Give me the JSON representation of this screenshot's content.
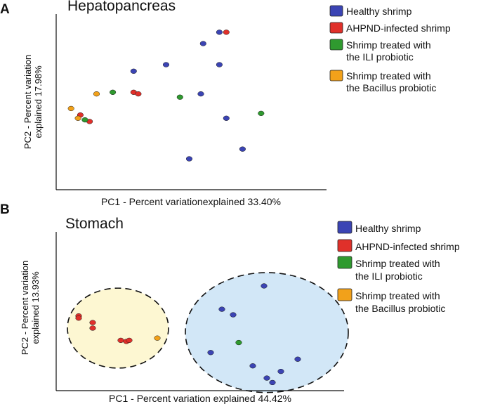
{
  "chart_data": [
    {
      "type": "scatter",
      "panel": "A",
      "title": "Hepatopancreas",
      "xlabel": "PC1 - Percent variationexplained 33.40%",
      "ylabel_line1": "PC2 - Percent variation",
      "ylabel_line2": "explained 17.98%",
      "xlim": [
        0,
        100
      ],
      "ylim": [
        0,
        100
      ],
      "legend": [
        {
          "label": "Healthy shrimp",
          "color": "#3b44b4"
        },
        {
          "label": "AHPND-infected shrimp",
          "color": "#e0302a"
        },
        {
          "label_line1": "Shrimp treated with",
          "label_line2": "the ILI probiotic",
          "color": "#2f9a2f"
        },
        {
          "label_line1": "Shrimp treated with",
          "label_line2": "the Bacillus probiotic",
          "color": "#f2a11a"
        }
      ],
      "series": [
        {
          "name": "Healthy shrimp",
          "color": "#3b44b4",
          "points": [
            [
              68,
              94
            ],
            [
              61,
              87
            ],
            [
              68,
              74
            ],
            [
              45,
              74
            ],
            [
              31,
              70
            ],
            [
              60,
              56
            ],
            [
              71,
              41
            ],
            [
              55,
              16
            ],
            [
              78,
              22
            ]
          ]
        },
        {
          "name": "AHPND-infected shrimp",
          "color": "#e0302a",
          "points": [
            [
              71,
              94
            ],
            [
              31,
              57
            ],
            [
              33,
              56
            ],
            [
              8,
              43
            ],
            [
              12,
              39
            ]
          ]
        },
        {
          "name": "Shrimp treated with the ILI probiotic",
          "color": "#2f9a2f",
          "points": [
            [
              22,
              57
            ],
            [
              51,
              54
            ],
            [
              86,
              44
            ],
            [
              10,
              40
            ]
          ]
        },
        {
          "name": "Shrimp treated with the Bacillus probiotic",
          "color": "#f2a11a",
          "points": [
            [
              15,
              56
            ],
            [
              4,
              47
            ],
            [
              7,
              41
            ]
          ]
        }
      ]
    },
    {
      "type": "scatter",
      "panel": "B",
      "title": "Stomach",
      "xlabel": "PC1 - Percent variation explained 44.42%",
      "ylabel_line1": "PC2 - Percent variation",
      "ylabel_line2": "explained 13.93%",
      "xlim": [
        0,
        100
      ],
      "ylim": [
        0,
        100
      ],
      "legend": [
        {
          "label": "Healthy shrimp",
          "color": "#3b44b4"
        },
        {
          "label": "AHPND-infected shrimp",
          "color": "#e0302a"
        },
        {
          "label_line1": "Shrimp treated with",
          "label_line2": "the ILI probiotic",
          "color": "#2f9a2f"
        },
        {
          "label_line1": "Shrimp treated with",
          "label_line2": "the Bacillus probiotic",
          "color": "#f2a11a"
        }
      ],
      "clusters": [
        {
          "name": "cluster-1",
          "fill": "#fdf7d2",
          "center": [
            20,
            50
          ],
          "radius": [
            18,
            36
          ]
        },
        {
          "name": "cluster-2",
          "fill": "#d2e7f7",
          "center": [
            73,
            46
          ],
          "radius": [
            29,
            54
          ]
        }
      ],
      "series": [
        {
          "name": "Healthy shrimp",
          "color": "#3b44b4",
          "points": [
            [
              72,
              88
            ],
            [
              57,
              67
            ],
            [
              61,
              62
            ],
            [
              53,
              28
            ],
            [
              84,
              22
            ],
            [
              68,
              16
            ],
            [
              78,
              11
            ],
            [
              73,
              5
            ],
            [
              75,
              1
            ]
          ]
        },
        {
          "name": "AHPND-infected shrimp",
          "color": "#e0302a",
          "points": [
            [
              6,
              61
            ],
            [
              6,
              59
            ],
            [
              11,
              55
            ],
            [
              11,
              50
            ],
            [
              21,
              39
            ],
            [
              23,
              38
            ],
            [
              24,
              39
            ]
          ]
        },
        {
          "name": "Shrimp treated with the ILI probiotic",
          "color": "#2f9a2f",
          "points": [
            [
              63,
              37
            ]
          ]
        },
        {
          "name": "Shrimp treated with the Bacillus probiotic",
          "color": "#f2a11a",
          "points": [
            [
              34,
              41
            ]
          ]
        }
      ]
    }
  ]
}
